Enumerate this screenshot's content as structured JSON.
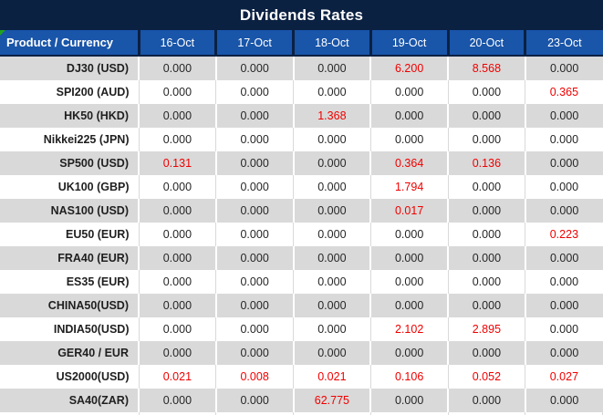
{
  "colors": {
    "title_bar": "#0B2142",
    "header_blue": "#1955A9",
    "stripe_gray": "#D9D9D9",
    "value_red": "#F00000",
    "text_dark": "#262626",
    "flag_green": "#21A121"
  },
  "icons": {
    "cell_corner_flag": "green-corner-triangle"
  },
  "chart_data": {
    "type": "table",
    "title": "Dividends Rates",
    "product_header": "Product / Currency",
    "date_columns": [
      "16-Oct",
      "17-Oct",
      "18-Oct",
      "19-Oct",
      "20-Oct",
      "23-Oct"
    ],
    "rows": [
      {
        "product": "DJ30 (USD)",
        "values": [
          "0.000",
          "0.000",
          "0.000",
          "6.200",
          "8.568",
          "0.000"
        ],
        "red_indices": [
          3,
          4
        ]
      },
      {
        "product": "SPI200 (AUD)",
        "values": [
          "0.000",
          "0.000",
          "0.000",
          "0.000",
          "0.000",
          "0.365"
        ],
        "red_indices": [
          5
        ]
      },
      {
        "product": "HK50 (HKD)",
        "values": [
          "0.000",
          "0.000",
          "1.368",
          "0.000",
          "0.000",
          "0.000"
        ],
        "red_indices": [
          2
        ]
      },
      {
        "product": "Nikkei225 (JPN)",
        "values": [
          "0.000",
          "0.000",
          "0.000",
          "0.000",
          "0.000",
          "0.000"
        ],
        "red_indices": []
      },
      {
        "product": "SP500 (USD)",
        "values": [
          "0.131",
          "0.000",
          "0.000",
          "0.364",
          "0.136",
          "0.000"
        ],
        "red_indices": [
          0,
          3,
          4
        ]
      },
      {
        "product": "UK100 (GBP)",
        "values": [
          "0.000",
          "0.000",
          "0.000",
          "1.794",
          "0.000",
          "0.000"
        ],
        "red_indices": [
          3
        ]
      },
      {
        "product": "NAS100 (USD)",
        "values": [
          "0.000",
          "0.000",
          "0.000",
          "0.017",
          "0.000",
          "0.000"
        ],
        "red_indices": [
          3
        ]
      },
      {
        "product": "EU50 (EUR)",
        "values": [
          "0.000",
          "0.000",
          "0.000",
          "0.000",
          "0.000",
          "0.223"
        ],
        "red_indices": [
          5
        ]
      },
      {
        "product": "FRA40 (EUR)",
        "values": [
          "0.000",
          "0.000",
          "0.000",
          "0.000",
          "0.000",
          "0.000"
        ],
        "red_indices": []
      },
      {
        "product": "ES35 (EUR)",
        "values": [
          "0.000",
          "0.000",
          "0.000",
          "0.000",
          "0.000",
          "0.000"
        ],
        "red_indices": []
      },
      {
        "product": "CHINA50(USD)",
        "values": [
          "0.000",
          "0.000",
          "0.000",
          "0.000",
          "0.000",
          "0.000"
        ],
        "red_indices": []
      },
      {
        "product": "INDIA50(USD)",
        "values": [
          "0.000",
          "0.000",
          "0.000",
          "2.102",
          "2.895",
          "0.000"
        ],
        "red_indices": [
          3,
          4
        ]
      },
      {
        "product": "GER40 / EUR",
        "values": [
          "0.000",
          "0.000",
          "0.000",
          "0.000",
          "0.000",
          "0.000"
        ],
        "red_indices": []
      },
      {
        "product": "US2000(USD)",
        "values": [
          "0.021",
          "0.008",
          "0.021",
          "0.106",
          "0.052",
          "0.027"
        ],
        "red_indices": [
          0,
          1,
          2,
          3,
          4,
          5
        ]
      },
      {
        "product": "SA40(ZAR)",
        "values": [
          "0.000",
          "0.000",
          "62.775",
          "0.000",
          "0.000",
          "0.000"
        ],
        "red_indices": [
          2
        ]
      }
    ]
  }
}
